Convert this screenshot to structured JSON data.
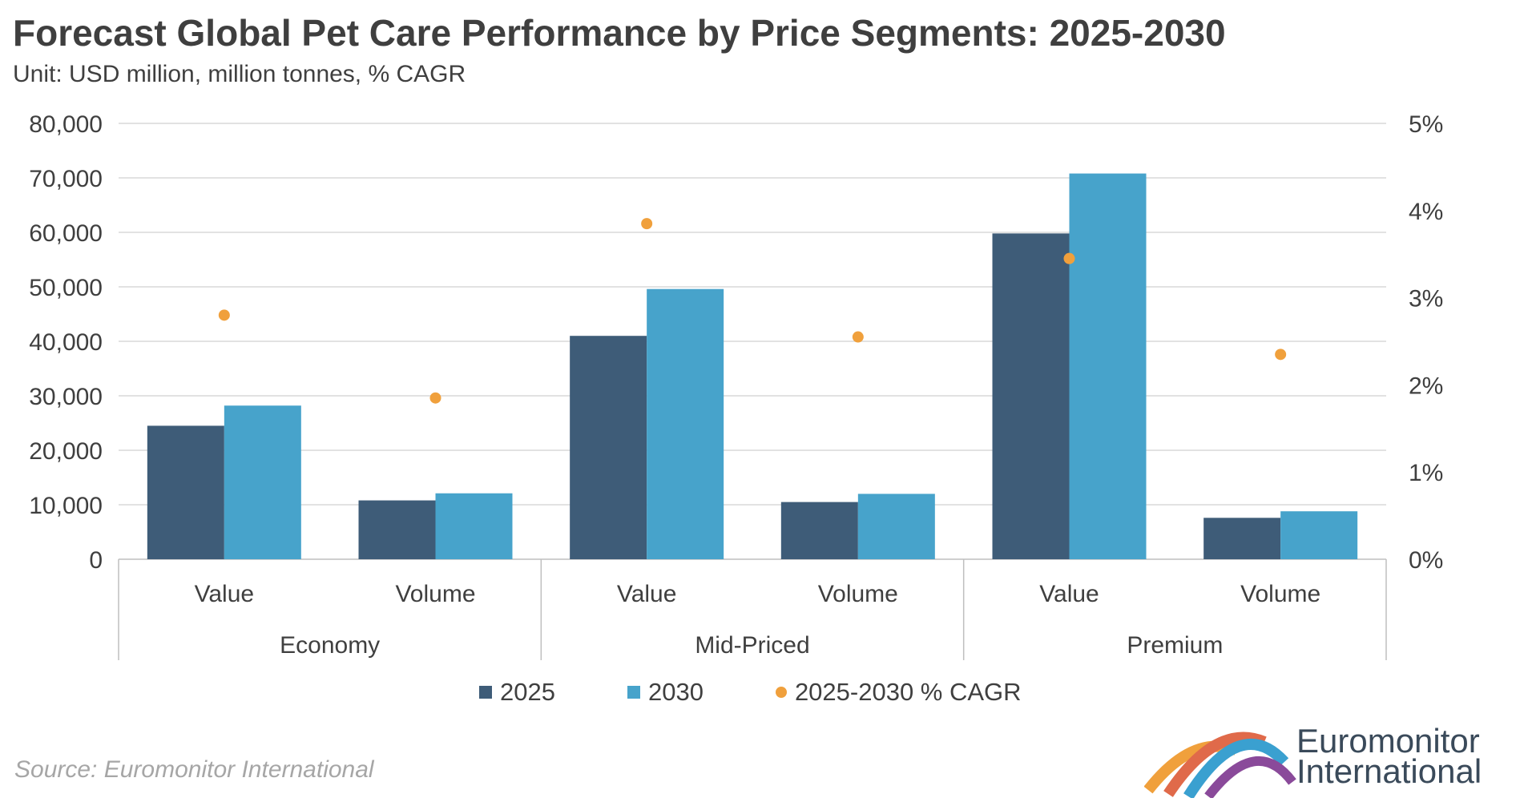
{
  "title": "Forecast Global Pet Care Performance by Price Segments: 2025-2030",
  "subtitle": "Unit: USD million, million tonnes, % CAGR",
  "source": "Source: Euromonitor International",
  "logo": {
    "line1": "Euromonitor",
    "line2": "International"
  },
  "colors": {
    "s2025": "#3e5c78",
    "s2030": "#47a3cb",
    "cagr": "#f0a03c",
    "grid": "#d9d9d9",
    "axis": "#bfbfbf"
  },
  "chart_data": {
    "type": "bar",
    "title": "Forecast Global Pet Care Performance by Price Segments: 2025-2030",
    "categories": [
      "Value",
      "Volume",
      "Value",
      "Volume",
      "Value",
      "Volume"
    ],
    "groups": [
      {
        "label": "Economy",
        "categories": [
          "Value",
          "Volume"
        ]
      },
      {
        "label": "Mid-Priced",
        "categories": [
          "Value",
          "Volume"
        ]
      },
      {
        "label": "Premium",
        "categories": [
          "Value",
          "Volume"
        ]
      }
    ],
    "series": [
      {
        "name": "2025",
        "type": "bar",
        "axis": "left",
        "values": [
          24500,
          10800,
          41000,
          10500,
          59800,
          7600
        ]
      },
      {
        "name": "2030",
        "type": "bar",
        "axis": "left",
        "values": [
          28200,
          12100,
          49600,
          12000,
          70800,
          8800
        ]
      },
      {
        "name": "2025-2030 % CAGR",
        "type": "scatter",
        "axis": "right",
        "values": [
          2.8,
          1.85,
          3.85,
          2.55,
          3.45,
          2.35
        ]
      }
    ],
    "ylim": [
      0,
      80000
    ],
    "yticks": [
      "0",
      "10,000",
      "20,000",
      "30,000",
      "40,000",
      "50,000",
      "60,000",
      "70,000",
      "80,000"
    ],
    "y2lim": [
      0,
      5
    ],
    "y2ticks": [
      "0%",
      "1%",
      "2%",
      "3%",
      "4%",
      "5%"
    ],
    "legend": [
      "2025",
      "2030",
      "2025-2030 % CAGR"
    ],
    "grid": true,
    "legend_position": "bottom"
  }
}
